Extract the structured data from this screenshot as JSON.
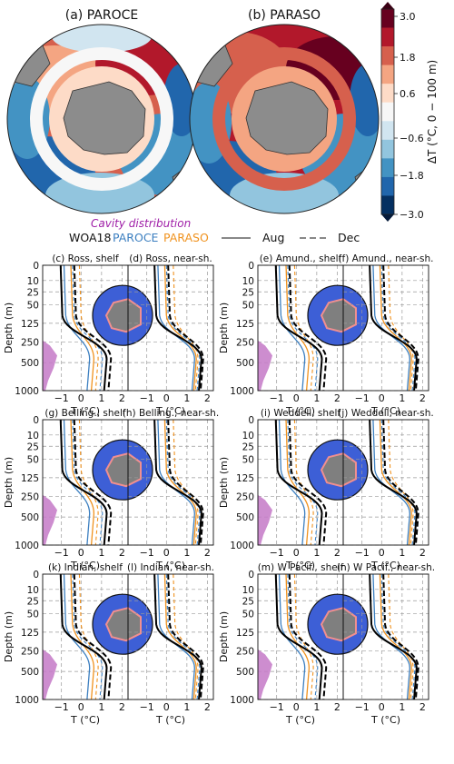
{
  "maps": {
    "panel_a_title": "(a) PAROCE",
    "panel_b_title": "(b) PARASO",
    "colorbar": {
      "label": "ΔT (°C, 0 − 100 m)",
      "ticks": [
        "3.0",
        "1.8",
        "0.6",
        "−0.6",
        "−1.8",
        "−3.0"
      ],
      "colors": [
        "#67001f",
        "#b2182b",
        "#d6604d",
        "#f4a582",
        "#fddbc7",
        "#f7f7f7",
        "#d1e5f0",
        "#92c5de",
        "#4393c3",
        "#2166ac",
        "#053061"
      ]
    }
  },
  "legend": {
    "cavity": "Cavity distribution",
    "woa18": "WOA18",
    "paroce": "PAROCE",
    "paraso": "PARASO",
    "aug": "Aug",
    "dec": "Dec"
  },
  "colors": {
    "woa18": "#000000",
    "paroce": "#3c7fc0",
    "paraso": "#f0921e",
    "cavity": "#c479c7"
  },
  "chart_data": {
    "type": "line",
    "ylabel": "Depth (m)",
    "xlabel": "T (°C)",
    "y_ticks": [
      "0",
      "10",
      "25",
      "50",
      "125",
      "250",
      "500",
      "1000"
    ],
    "x_ticks": [
      "−1",
      "0",
      "1",
      "2"
    ],
    "panels": [
      {
        "title": "(c) Ross, shelf"
      },
      {
        "title": "(d) Ross, near-sh."
      },
      {
        "title": "(e) Amund., shelf"
      },
      {
        "title": "(f) Amund., near-sh."
      },
      {
        "title": "(g) Belling., shelf"
      },
      {
        "title": "(h) Belling., near-sh."
      },
      {
        "title": "(i) Weddell, shelf"
      },
      {
        "title": "(j) Weddell, near-sh."
      },
      {
        "title": "(k) Indian, shelf"
      },
      {
        "title": "(l) Indian, near-sh."
      },
      {
        "title": "(m) W Pacif., shelf"
      },
      {
        "title": "(n) W Pacif., near-sh."
      }
    ]
  }
}
